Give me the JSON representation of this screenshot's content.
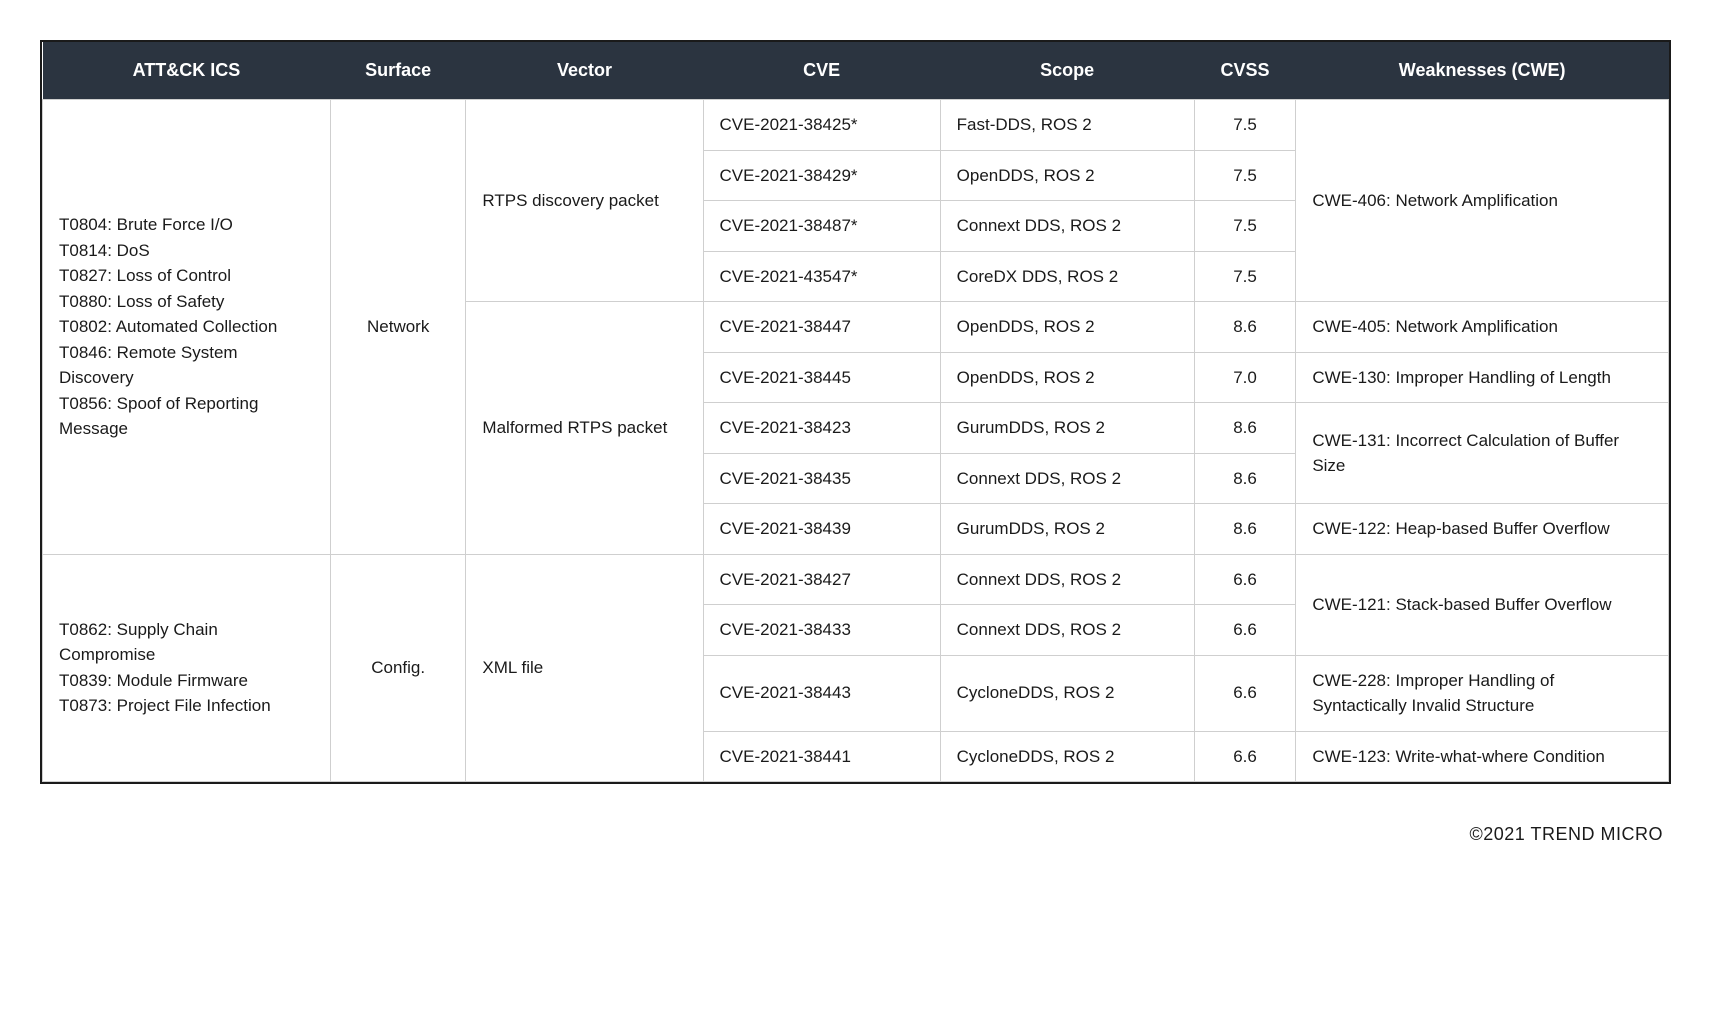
{
  "headers": {
    "attack": "ATT&CK ICS",
    "surface": "Surface",
    "vector": "Vector",
    "cve": "CVE",
    "scope": "Scope",
    "cvss": "CVSS",
    "cwe": "Weaknesses (CWE)"
  },
  "group1": {
    "attack_lines": [
      "T0804: Brute Force I/O",
      "T0814: DoS",
      "T0827: Loss of Control",
      "T0880: Loss of Safety",
      "T0802: Automated Collection",
      "T0846: Remote System Discovery",
      "T0856: Spoof of Reporting Message"
    ],
    "surface": "Network",
    "vector_a": "RTPS discovery packet",
    "vector_b": "Malformed RTPS packet",
    "rows_a": [
      {
        "cve": "CVE-2021-38425*",
        "scope": "Fast-DDS, ROS 2",
        "cvss": "7.5"
      },
      {
        "cve": "CVE-2021-38429*",
        "scope": "OpenDDS, ROS 2",
        "cvss": "7.5"
      },
      {
        "cve": "CVE-2021-38487*",
        "scope": "Connext DDS, ROS 2",
        "cvss": "7.5"
      },
      {
        "cve": "CVE-2021-43547*",
        "scope": "CoreDX DDS, ROS 2",
        "cvss": "7.5"
      }
    ],
    "cwe_a": "CWE-406: Network Amplification",
    "rows_b": [
      {
        "cve": "CVE-2021-38447",
        "scope": "OpenDDS, ROS 2",
        "cvss": "8.6",
        "cwe": "CWE-405: Network Amplification"
      },
      {
        "cve": "CVE-2021-38445",
        "scope": "OpenDDS, ROS 2",
        "cvss": "7.0",
        "cwe": "CWE-130: Improper Handling of Length"
      },
      {
        "cve": "CVE-2021-38423",
        "scope": "GurumDDS, ROS 2",
        "cvss": "8.6"
      },
      {
        "cve": "CVE-2021-38435",
        "scope": "Connext DDS, ROS 2",
        "cvss": "8.6"
      },
      {
        "cve": "CVE-2021-38439",
        "scope": "GurumDDS, ROS 2",
        "cvss": "8.6",
        "cwe": "CWE-122: Heap-based Buffer Overflow"
      }
    ],
    "cwe_b_shared": "CWE-131: Incorrect Calculation of Buffer Size"
  },
  "group2": {
    "attack_lines": [
      "T0862: Supply Chain Compromise",
      "T0839: Module Firmware",
      "T0873: Project File Infection"
    ],
    "surface": "Config.",
    "vector": "XML file",
    "rows": [
      {
        "cve": "CVE-2021-38427",
        "scope": "Connext DDS, ROS 2",
        "cvss": "6.6"
      },
      {
        "cve": "CVE-2021-38433",
        "scope": "Connext DDS, ROS 2",
        "cvss": "6.6"
      },
      {
        "cve": "CVE-2021-38443",
        "scope": "CycloneDDS, ROS 2",
        "cvss": "6.6",
        "cwe": "CWE-228: Improper Handling of Syntactically Invalid Structure"
      },
      {
        "cve": "CVE-2021-38441",
        "scope": "CycloneDDS, ROS 2",
        "cvss": "6.6",
        "cwe": "CWE-123: Write-what-where Condition"
      }
    ],
    "cwe_shared": "CWE-121: Stack-based Buffer Overflow"
  },
  "copyright": "©2021 TREND MICRO"
}
